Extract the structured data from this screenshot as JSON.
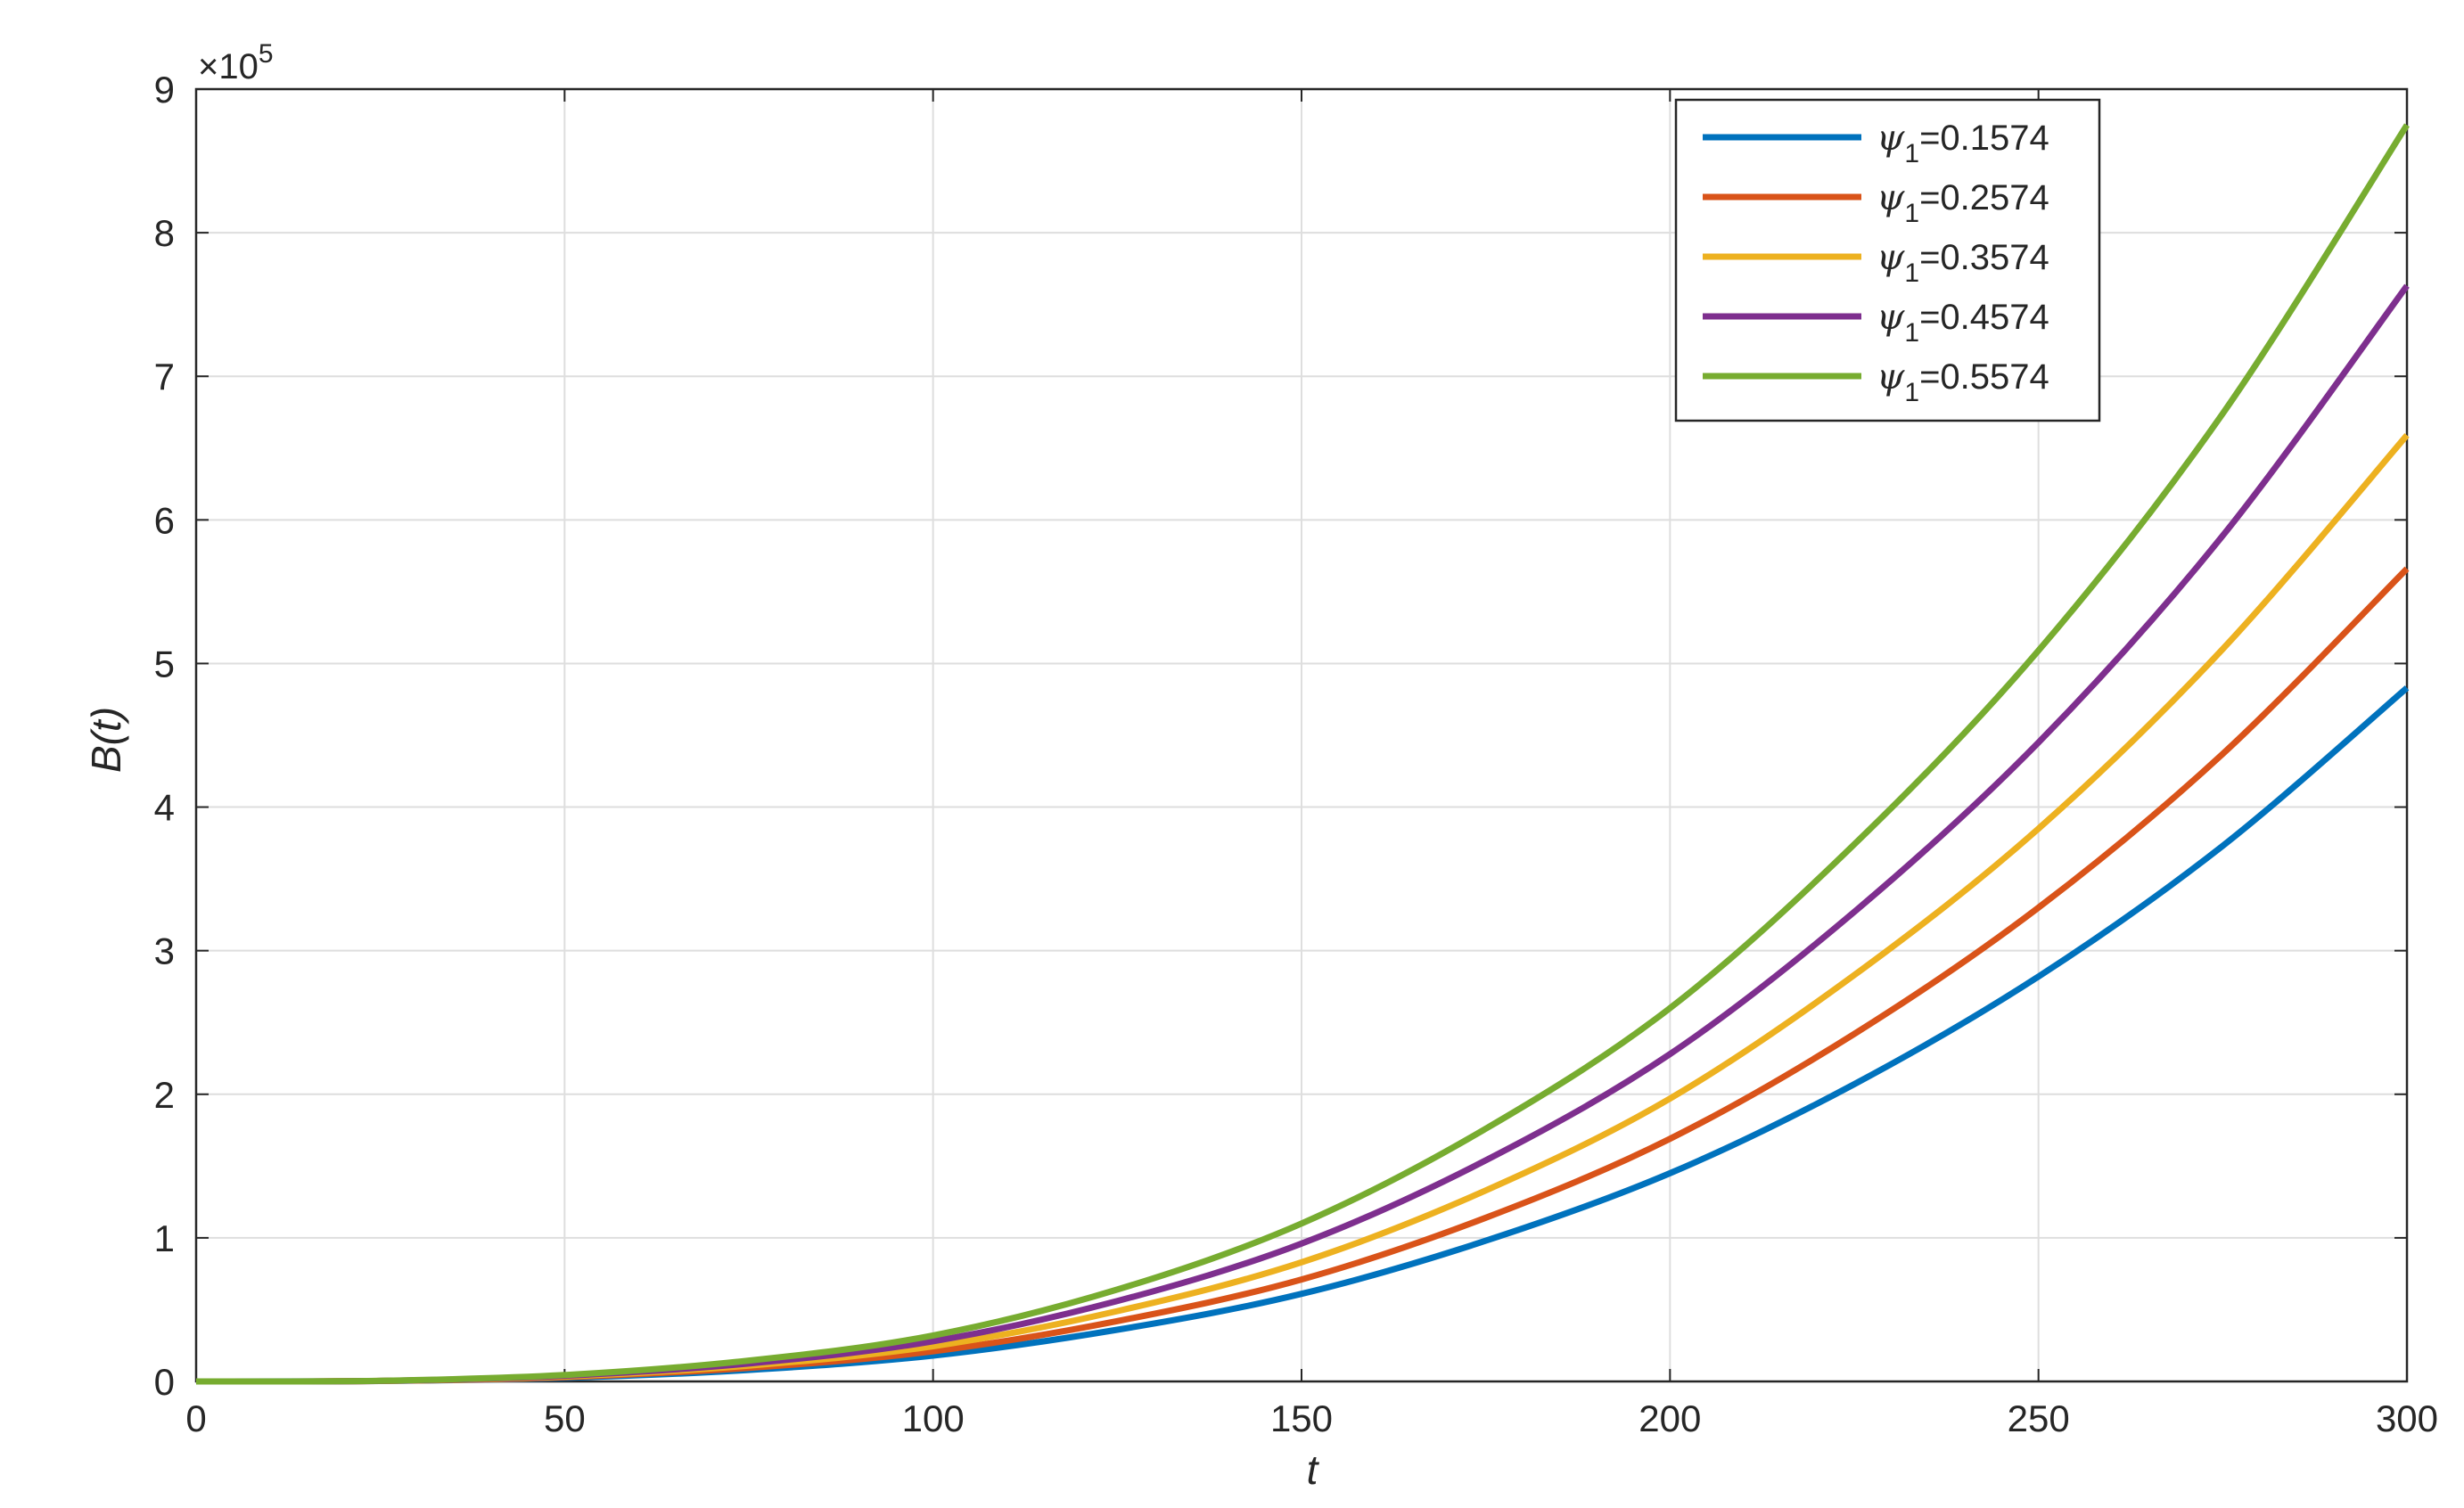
{
  "chart_data": {
    "type": "line",
    "title": "",
    "xlabel": "t",
    "ylabel": "B(t)",
    "xlim": [
      0,
      300
    ],
    "ylim": [
      0,
      9
    ],
    "y_multiplier": "×10",
    "y_multiplier_exponent": "5",
    "xticks": [
      "0",
      "50",
      "100",
      "150",
      "200",
      "250",
      "300"
    ],
    "yticks": [
      "0",
      "1",
      "2",
      "3",
      "4",
      "5",
      "6",
      "7",
      "8",
      "9"
    ],
    "grid": true,
    "legend_position": "top-right",
    "x": [
      0,
      25,
      50,
      75,
      100,
      125,
      150,
      175,
      200,
      225,
      250,
      275,
      300
    ],
    "series": [
      {
        "name_prefix": "ψ",
        "name_subscript": "1",
        "name_suffix": "=0.1574",
        "color": "#0072BD",
        "values": [
          0,
          0.003,
          0.025,
          0.08,
          0.18,
          0.36,
          0.61,
          0.98,
          1.45,
          2.07,
          2.82,
          3.73,
          4.83
        ]
      },
      {
        "name_prefix": "ψ",
        "name_subscript": "1",
        "name_suffix": "=0.2574",
        "color": "#D95319",
        "values": [
          0,
          0.003,
          0.03,
          0.095,
          0.21,
          0.42,
          0.71,
          1.14,
          1.69,
          2.42,
          3.3,
          4.37,
          5.66
        ]
      },
      {
        "name_prefix": "ψ",
        "name_subscript": "1",
        "name_suffix": "=0.3574",
        "color": "#EDB120",
        "values": [
          0,
          0.004,
          0.035,
          0.11,
          0.245,
          0.49,
          0.83,
          1.33,
          1.97,
          2.83,
          3.85,
          5.1,
          6.59
        ]
      },
      {
        "name_prefix": "ψ",
        "name_subscript": "1",
        "name_suffix": "=0.4574",
        "color": "#7E2F8E",
        "values": [
          0,
          0.004,
          0.04,
          0.125,
          0.28,
          0.56,
          0.96,
          1.54,
          2.28,
          3.27,
          4.45,
          5.89,
          7.63
        ]
      },
      {
        "name_prefix": "ψ",
        "name_subscript": "1",
        "name_suffix": "=0.5574",
        "color": "#77AC30",
        "values": [
          0,
          0.005,
          0.045,
          0.145,
          0.32,
          0.64,
          1.1,
          1.76,
          2.6,
          3.74,
          5.09,
          6.74,
          8.75
        ]
      }
    ]
  }
}
